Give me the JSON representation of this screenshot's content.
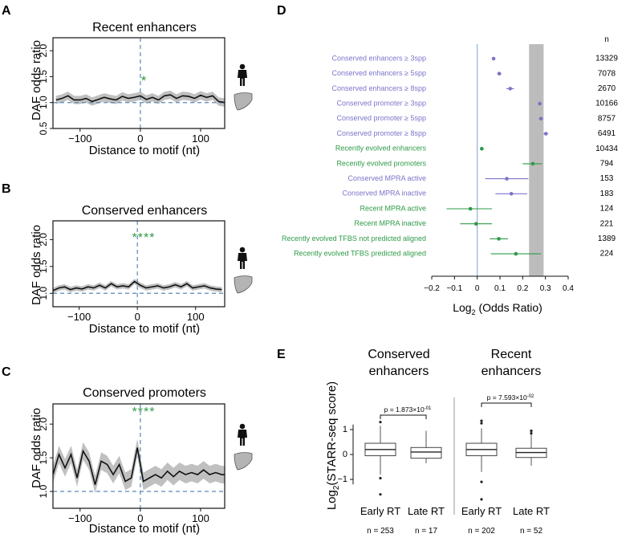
{
  "colors": {
    "purple": "#7b74c9",
    "green": "#2e9a48",
    "ref_blue": "#5b86b9",
    "band_gray": "#c0c0c0",
    "line": "#111111",
    "human_icon": "#111111",
    "organ_icon": "#b4b4b4"
  },
  "icons": {
    "human": "human-figure-icon",
    "organ": "liver-icon"
  },
  "chart_data": [
    {
      "panel": "A",
      "type": "line",
      "title": "Recent enhancers",
      "xlabel": "Distance to motif (nt)",
      "ylabel": "DAF odds ratio",
      "xlim": [
        -145,
        140
      ],
      "ylim": [
        0.5,
        2.25
      ],
      "xticks": [
        -100,
        0,
        100
      ],
      "yticks": [
        "0.5",
        "1.0",
        "1.5",
        "2.0"
      ],
      "significance": "*",
      "x": [
        -140,
        -130,
        -120,
        -110,
        -100,
        -90,
        -80,
        -70,
        -60,
        -50,
        -40,
        -30,
        -20,
        -10,
        0,
        10,
        20,
        30,
        40,
        50,
        60,
        70,
        80,
        90,
        100,
        110,
        120,
        130,
        140
      ],
      "y": [
        1.05,
        1.08,
        1.13,
        1.05,
        1.05,
        1.08,
        1.02,
        1.06,
        1.1,
        1.07,
        1.05,
        1.12,
        1.08,
        1.1,
        1.13,
        1.06,
        1.1,
        1.05,
        1.13,
        1.15,
        1.08,
        1.13,
        1.12,
        1.08,
        1.14,
        1.1,
        1.13,
        1.02,
        1.0
      ],
      "band": 0.08
    },
    {
      "panel": "B",
      "type": "line",
      "title": "Conserved enhancers",
      "xlabel": "Distance to motif (nt)",
      "ylabel": "DAF odds ratio",
      "xlim": [
        -145,
        150
      ],
      "ylim": [
        0.75,
        2.35
      ],
      "xticks": [
        -100,
        0,
        100
      ],
      "yticks": [
        "1.0",
        "1.5",
        "2.0"
      ],
      "significance": "****",
      "x": [
        -145,
        -135,
        -125,
        -115,
        -105,
        -95,
        -85,
        -75,
        -65,
        -55,
        -45,
        -35,
        -25,
        -15,
        -5,
        5,
        15,
        25,
        35,
        45,
        55,
        65,
        75,
        85,
        95,
        105,
        115,
        125,
        135,
        145
      ],
      "y": [
        1.05,
        1.1,
        1.12,
        1.07,
        1.1,
        1.08,
        1.12,
        1.1,
        1.15,
        1.1,
        1.18,
        1.12,
        1.14,
        1.12,
        1.22,
        1.15,
        1.1,
        1.12,
        1.14,
        1.1,
        1.12,
        1.16,
        1.12,
        1.18,
        1.1,
        1.12,
        1.14,
        1.1,
        1.08,
        1.07
      ],
      "band": 0.05
    },
    {
      "panel": "C",
      "type": "line",
      "title": "Conserved promoters",
      "xlabel": "Distance to motif (nt)",
      "ylabel": "DAF odds ratio",
      "xlim": [
        -145,
        140
      ],
      "ylim": [
        0.75,
        2.3
      ],
      "xticks": [
        -100,
        0,
        100
      ],
      "yticks": [
        "1.0",
        "1.5",
        "2.0"
      ],
      "significance": "****",
      "x": [
        -145,
        -135,
        -125,
        -115,
        -105,
        -95,
        -85,
        -75,
        -65,
        -55,
        -45,
        -35,
        -25,
        -15,
        -5,
        5,
        15,
        25,
        35,
        45,
        55,
        65,
        75,
        85,
        95,
        105,
        115,
        125,
        135,
        140
      ],
      "y": [
        1.25,
        1.55,
        1.35,
        1.55,
        1.2,
        1.6,
        1.45,
        1.1,
        1.45,
        1.4,
        1.25,
        1.4,
        1.15,
        1.2,
        1.65,
        1.15,
        1.2,
        1.25,
        1.2,
        1.3,
        1.22,
        1.3,
        1.25,
        1.28,
        1.25,
        1.32,
        1.25,
        1.28,
        1.25,
        1.25
      ],
      "band": 0.13
    },
    {
      "panel": "D",
      "type": "scatter",
      "xlabel_base": "Log",
      "xlabel_sub": "2",
      "xlabel_rest": " (Odds Ratio)",
      "n_header": "n",
      "xlim": [
        -0.2,
        0.4
      ],
      "xticks": [
        "-0.2",
        "-0.1",
        "0",
        "0.1",
        "0.2",
        "0.3",
        "0.4"
      ],
      "ref_line": 0,
      "shaded_range": [
        0.228,
        0.292
      ],
      "rows": [
        {
          "label": "Conserved enhancers ≥ 3spp",
          "value": 0.072,
          "lo": 0.068,
          "hi": 0.078,
          "n": "13329",
          "group": "conserved"
        },
        {
          "label": "Conserved enhancers ≥ 5spp",
          "value": 0.097,
          "lo": 0.088,
          "hi": 0.106,
          "n": "7078",
          "group": "conserved"
        },
        {
          "label": "Conserved enhancers ≥ 8spp",
          "value": 0.145,
          "lo": 0.128,
          "hi": 0.162,
          "n": "2670",
          "group": "conserved"
        },
        {
          "label": "Conserved promoter ≥ 3spp",
          "value": 0.275,
          "lo": 0.268,
          "hi": 0.282,
          "n": "10166",
          "group": "conserved"
        },
        {
          "label": "Conserved promoter ≥ 5spp",
          "value": 0.28,
          "lo": 0.272,
          "hi": 0.29,
          "n": "8757",
          "group": "conserved"
        },
        {
          "label": "Conserved promoter ≥ 8spp",
          "value": 0.302,
          "lo": 0.292,
          "hi": 0.312,
          "n": "6491",
          "group": "conserved"
        },
        {
          "label": "Recently evolved enhancers",
          "value": 0.02,
          "lo": 0.012,
          "hi": 0.028,
          "n": "10434",
          "group": "recent"
        },
        {
          "label": "Recently evolved promoters",
          "value": 0.245,
          "lo": 0.2,
          "hi": 0.285,
          "n": "794",
          "group": "recent"
        },
        {
          "label": "Conserved MPRA active",
          "value": 0.13,
          "lo": 0.035,
          "hi": 0.225,
          "n": "153",
          "group": "conserved"
        },
        {
          "label": "Conserved MPRA inactive",
          "value": 0.15,
          "lo": 0.08,
          "hi": 0.22,
          "n": "183",
          "group": "conserved"
        },
        {
          "label": "Recent MPRA active",
          "value": -0.03,
          "lo": -0.135,
          "hi": 0.065,
          "n": "124",
          "group": "recent"
        },
        {
          "label": "Recent MPRA inactive",
          "value": -0.005,
          "lo": -0.075,
          "hi": 0.065,
          "n": "221",
          "group": "recent"
        },
        {
          "label": "Recently evolved TFBS not predicted aligned",
          "value": 0.095,
          "lo": 0.055,
          "hi": 0.135,
          "n": "1389",
          "group": "recent"
        },
        {
          "label": "Recently evolved TFBS predicted aligned",
          "value": 0.17,
          "lo": 0.06,
          "hi": 0.28,
          "n": "224",
          "group": "recent"
        }
      ]
    },
    {
      "panel": "E",
      "type": "box",
      "ylabel_base": "Log",
      "ylabel_sub": "2",
      "ylabel_rest": "(STARR-seq score)",
      "ylim": [
        -1.9,
        1.9
      ],
      "yticks": [
        "1",
        "0",
        "-1"
      ],
      "groups": [
        {
          "title_line1": "Conserved",
          "title_line2": "enhancers",
          "pvalue_base": "p = 1.873×10",
          "pvalue_exp": "-01",
          "boxes": [
            {
              "label": "Early RT",
              "n": "n = 253",
              "min": -0.8,
              "q1": -0.05,
              "median": 0.2,
              "q3": 0.45,
              "max": 1.15,
              "outliers": [
                1.3,
                -0.95,
                -1.6
              ]
            },
            {
              "label": "Late RT",
              "n": "n = 17",
              "min": -0.35,
              "q1": -0.15,
              "median": 0.1,
              "q3": 0.28,
              "max": 0.95,
              "outliers": []
            }
          ]
        },
        {
          "title_line1": "Recent",
          "title_line2": "enhancers",
          "pvalue_base": "p = 7.593×10",
          "pvalue_exp": "-02",
          "boxes": [
            {
              "label": "Early RT",
              "n": "n = 202",
              "min": -0.7,
              "q1": -0.05,
              "median": 0.2,
              "q3": 0.45,
              "max": 1.05,
              "outliers": [
                1.25,
                1.35,
                -1.1,
                -1.8
              ]
            },
            {
              "label": "Late RT",
              "n": "n = 52",
              "min": -0.45,
              "q1": -0.12,
              "median": 0.08,
              "q3": 0.25,
              "max": 0.8,
              "outliers": [
                0.95,
                0.85
              ]
            }
          ]
        }
      ]
    }
  ]
}
